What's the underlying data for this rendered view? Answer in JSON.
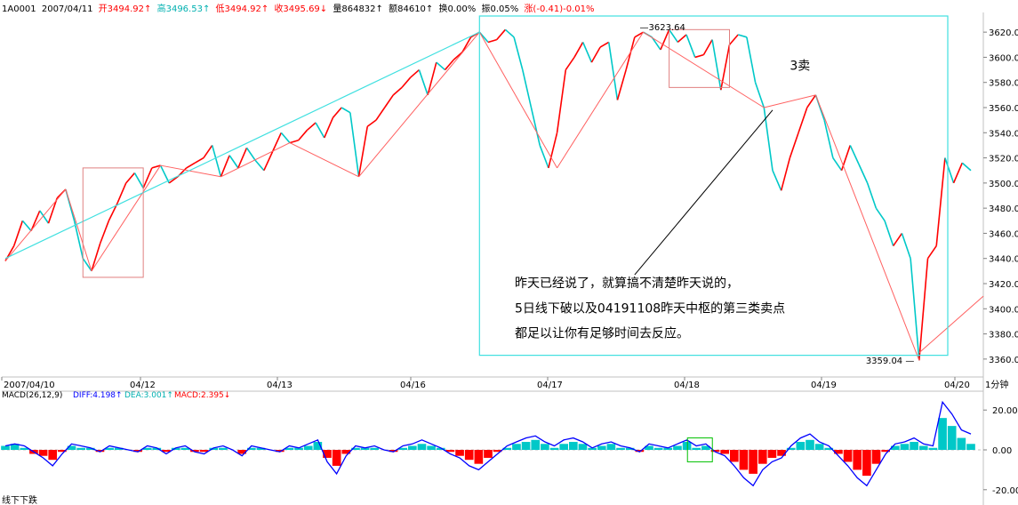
{
  "colors": {
    "up": "#ff0000",
    "down": "#00c8c8",
    "frame": "#40e0e0",
    "axis_text": "#000000",
    "diff": "#0000ff",
    "dea": "#00b0b0",
    "macd_label": "#ff0000",
    "zigzag": "#ff6060",
    "box_red": "#e08080",
    "box_green": "#00c000",
    "annotation": "#000000"
  },
  "header": {
    "code": "1A0001",
    "date": "2007/04/11",
    "open": "开3494.92↑",
    "high": "高3496.53↑",
    "low": "低3494.92↑",
    "close": "收3495.69↓",
    "volume": "量864832↑",
    "amount": "额84610↑",
    "turnover": "换0.00%",
    "amplitude": "振0.05%",
    "change": "涨(-0.41)-0.01%"
  },
  "macd_header": {
    "name": "MACD(26,12,9)",
    "diff": "DIFF:4.198↑",
    "dea": "DEA:3.001↑",
    "macd": "MACD:2.395↓"
  },
  "annotation": {
    "label_3sell": "3卖",
    "text_line1": "昨天已经说了，就算搞不清楚昨天说的，",
    "text_line2": "5日线下破以及04191108昨天中枢的第三类卖点",
    "text_line3": "都足以让你有足够时间去反应。"
  },
  "chart_data": [
    {
      "type": "line",
      "title": "",
      "x_ticks": [
        "2007/04/10",
        "04/12",
        "04/13",
        "04/16",
        "04/17",
        "04/18",
        "04/19",
        "04/20"
      ],
      "x_unit_label": "1分钟",
      "ylim": [
        3350,
        3630
      ],
      "y_ticks": [
        3360.0,
        3380.0,
        3400.0,
        3420.0,
        3440.0,
        3460.0,
        3480.0,
        3500.0,
        3520.0,
        3540.0,
        3560.0,
        3580.0,
        3600.0,
        3620.0
      ],
      "peak_label": "3623.64",
      "trough_label": "3359.04",
      "series": [
        {
          "values": [
            3438,
            3450,
            3470,
            3462,
            3478,
            3468,
            3488,
            3495,
            3470,
            3440,
            3430,
            3452,
            3470,
            3484,
            3500,
            3508,
            3496,
            3512,
            3514,
            3500,
            3505,
            3512,
            3516,
            3520,
            3530,
            3505,
            3522,
            3512,
            3528,
            3518,
            3510,
            3525,
            3540,
            3532,
            3534,
            3542,
            3548,
            3536,
            3552,
            3560,
            3556,
            3505,
            3545,
            3550,
            3560,
            3570,
            3576,
            3584,
            3590,
            3570,
            3596,
            3590,
            3598,
            3604,
            3616,
            3620,
            3612,
            3614,
            3622,
            3616,
            3590,
            3560,
            3530,
            3512,
            3540,
            3590,
            3600,
            3612,
            3596,
            3608,
            3612,
            3566,
            3590,
            3616,
            3620,
            3616,
            3606,
            3622,
            3612,
            3618,
            3600,
            3602,
            3614,
            3574,
            3610,
            3618,
            3616,
            3580,
            3560,
            3510,
            3494,
            3520,
            3540,
            3560,
            3570,
            3550,
            3520,
            3510,
            3530,
            3515,
            3500,
            3480,
            3470,
            3450,
            3460,
            3440,
            3359,
            3440,
            3450,
            3520,
            3500,
            3516,
            3510
          ]
        }
      ]
    },
    {
      "type": "bar",
      "title": "",
      "ylim": [
        -25,
        25
      ],
      "y_ticks": [
        20.0,
        0.0,
        -20.0
      ],
      "series": [
        {
          "name": "DIFF",
          "values": [
            2,
            3,
            2,
            -1,
            -4,
            -8,
            -2,
            3,
            2,
            1,
            -1,
            2,
            1,
            0,
            -1,
            2,
            1,
            -2,
            1,
            2,
            -1,
            -2,
            1,
            2,
            0,
            -3,
            2,
            1,
            0,
            -1,
            2,
            1,
            3,
            5,
            -6,
            -12,
            -3,
            2,
            1,
            2,
            0,
            -1,
            2,
            3,
            5,
            3,
            1,
            -2,
            -4,
            -8,
            -10,
            -6,
            -2,
            2,
            4,
            6,
            7,
            4,
            2,
            5,
            6,
            4,
            1,
            3,
            4,
            2,
            1,
            -1,
            3,
            2,
            1,
            3,
            5,
            2,
            3,
            -1,
            -3,
            -8,
            -14,
            -18,
            -10,
            -6,
            -4,
            2,
            6,
            8,
            4,
            2,
            -3,
            -8,
            -14,
            -18,
            -10,
            -2,
            3,
            4,
            6,
            3,
            2,
            24,
            18,
            10,
            8
          ]
        },
        {
          "name": "MACD",
          "values": [
            2,
            3,
            1,
            -2,
            -3,
            -5,
            -1,
            2,
            1,
            1,
            -1,
            1,
            1,
            0,
            -1,
            1,
            1,
            -1,
            1,
            1,
            -1,
            -1,
            1,
            1,
            0,
            -2,
            1,
            1,
            0,
            -1,
            1,
            1,
            2,
            4,
            -4,
            -8,
            -2,
            1,
            1,
            1,
            0,
            -1,
            1,
            2,
            3,
            2,
            1,
            -1,
            -3,
            -5,
            -7,
            -4,
            -1,
            1,
            3,
            4,
            5,
            3,
            1,
            3,
            4,
            3,
            1,
            2,
            3,
            1,
            1,
            -1,
            2,
            1,
            1,
            2,
            4,
            1,
            2,
            -1,
            -2,
            -6,
            -10,
            -12,
            -7,
            -4,
            -3,
            1,
            4,
            5,
            3,
            1,
            -2,
            -6,
            -10,
            -13,
            -7,
            -1,
            2,
            3,
            4,
            2,
            1,
            16,
            12,
            6,
            3
          ]
        }
      ]
    }
  ],
  "footer_text": "线下下跌"
}
